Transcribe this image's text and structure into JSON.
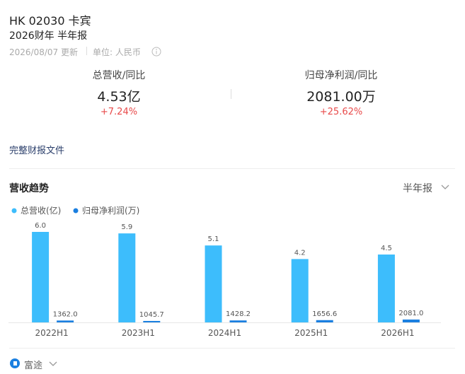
{
  "header": {
    "title": "HK 02030 卡宾",
    "subtitle": "2026财年 半年报",
    "updated": "2026/08/07 更新",
    "unit": "单位: 人民币"
  },
  "metrics": [
    {
      "label": "总营收/同比",
      "value": "4.53亿",
      "change": "+7.24%"
    },
    {
      "label": "归母净利润/同比",
      "value": "2081.00万",
      "change": "+25.62%"
    }
  ],
  "report_link": "完整财报文件",
  "chart_data": {
    "type": "bar",
    "title": "营收趋势",
    "period": "半年报",
    "categories": [
      "2022H1",
      "2023H1",
      "2024H1",
      "2025H1",
      "2026H1"
    ],
    "ylim": [
      0,
      6
    ],
    "y2lim": [
      0,
      66000
    ],
    "series": [
      {
        "name": "总营收(亿)",
        "color": "#3dbdfc",
        "values": [
          6.0,
          5.9,
          5.1,
          4.2,
          4.5
        ],
        "value_labels": [
          "6.0",
          "5.9",
          "5.1",
          "4.2",
          "4.5"
        ]
      },
      {
        "name": "归母净利润(万)",
        "color": "#1a7fe0",
        "axis": "y2",
        "values": [
          1362.0,
          1045.7,
          1428.2,
          1656.6,
          2081.0
        ],
        "value_labels": [
          "1362.0",
          "1045.7",
          "1428.2",
          "1656.6",
          "2081.0"
        ]
      }
    ]
  },
  "footer": {
    "brand": "富途"
  }
}
